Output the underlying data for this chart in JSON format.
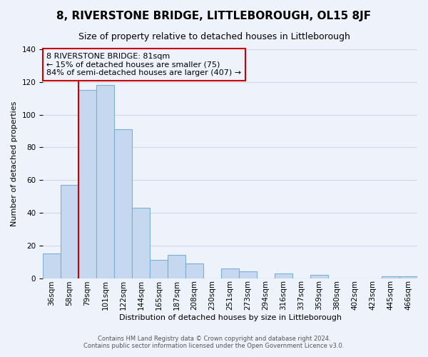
{
  "title": "8, RIVERSTONE BRIDGE, LITTLEBOROUGH, OL15 8JF",
  "subtitle": "Size of property relative to detached houses in Littleborough",
  "xlabel": "Distribution of detached houses by size in Littleborough",
  "ylabel": "Number of detached properties",
  "bar_labels": [
    "36sqm",
    "58sqm",
    "79sqm",
    "101sqm",
    "122sqm",
    "144sqm",
    "165sqm",
    "187sqm",
    "208sqm",
    "230sqm",
    "251sqm",
    "273sqm",
    "294sqm",
    "316sqm",
    "337sqm",
    "359sqm",
    "380sqm",
    "402sqm",
    "423sqm",
    "445sqm",
    "466sqm"
  ],
  "bar_values": [
    15,
    57,
    115,
    118,
    91,
    43,
    11,
    14,
    9,
    0,
    6,
    4,
    0,
    3,
    0,
    2,
    0,
    0,
    0,
    1,
    1
  ],
  "bar_color": "#c5d8f0",
  "bar_edge_color": "#7bafd4",
  "vline_color": "#cc0000",
  "vline_bar_index": 2,
  "ylim": [
    0,
    140
  ],
  "annotation_title": "8 RIVERSTONE BRIDGE: 81sqm",
  "annotation_line1": "← 15% of detached houses are smaller (75)",
  "annotation_line2": "84% of semi-detached houses are larger (407) →",
  "annotation_box_edge": "#cc0000",
  "footnote1": "Contains HM Land Registry data © Crown copyright and database right 2024.",
  "footnote2": "Contains public sector information licensed under the Open Government Licence v3.0.",
  "bg_color": "#eef3fb",
  "grid_color": "#d0d8e8",
  "title_fontsize": 11,
  "subtitle_fontsize": 9,
  "ylabel_fontsize": 8,
  "tick_fontsize": 7.5,
  "annot_fontsize": 8
}
